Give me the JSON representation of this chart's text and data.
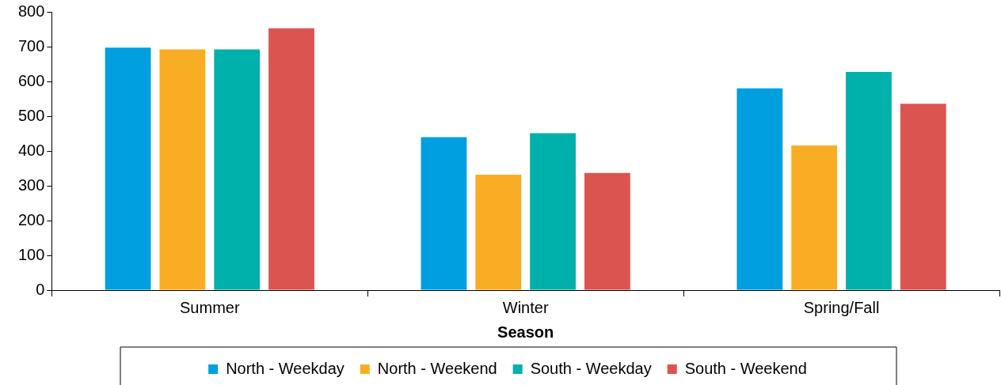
{
  "chart_data": {
    "type": "bar",
    "xlabel": "Season",
    "categories": [
      "Summer",
      "Winter",
      "Spring/Fall"
    ],
    "series": [
      {
        "name": "North - Weekday",
        "color": "#009fdf",
        "values": [
          697,
          440,
          580
        ]
      },
      {
        "name": "North - Weekend",
        "color": "#f9ad24",
        "values": [
          692,
          332,
          416
        ]
      },
      {
        "name": "South - Weekday",
        "color": "#00b0aa",
        "values": [
          692,
          451,
          627
        ]
      },
      {
        "name": "South - Weekend",
        "color": "#dc5450",
        "values": [
          753,
          337,
          536
        ]
      }
    ],
    "ylim": [
      0,
      800
    ],
    "yticks": [
      0,
      100,
      200,
      300,
      400,
      500,
      600,
      700,
      800
    ],
    "grid": false,
    "legend": "bottom"
  }
}
